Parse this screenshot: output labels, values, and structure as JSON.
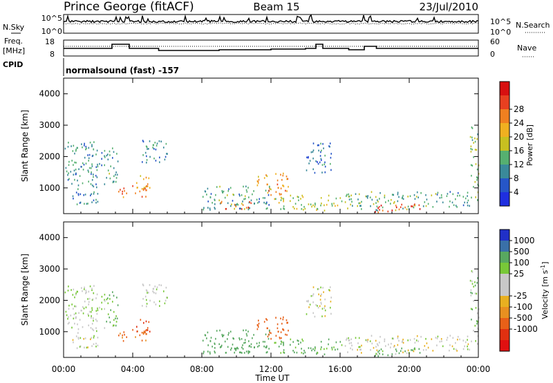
{
  "header": {
    "site": "Prince George (fitACF)",
    "beam": "Beam 15",
    "date": "23/Jul/2010"
  },
  "noise_panel": {
    "left_label": "N.Sky",
    "right_label": "N.Search",
    "tick_top": "10^5",
    "tick_bottom": "10^0"
  },
  "freq_panel": {
    "left_label_1": "Freq.",
    "left_label_2": "[MHz]",
    "right_label": "Nave",
    "left_ticks": [
      "18",
      "8"
    ],
    "right_ticks": [
      "60",
      "0"
    ]
  },
  "cpid": {
    "label": "CPID",
    "program": "normalsound (fast) -157"
  },
  "axes": {
    "ylabel": "Slant Range [km]",
    "xlabel": "Time UT",
    "yticks": [
      "1000",
      "2000",
      "3000",
      "4000"
    ],
    "xticks": [
      "00:00",
      "04:00",
      "08:00",
      "12:00",
      "16:00",
      "20:00",
      "00:00"
    ]
  },
  "power_scale": {
    "label": "Power [dB]",
    "ticks": [
      "4",
      "8",
      "12",
      "16",
      "20",
      "24",
      "28"
    ],
    "colors": [
      "#1f2fe0",
      "#2656c8",
      "#3a8a9a",
      "#56b070",
      "#c8c020",
      "#f0b020",
      "#f08020",
      "#e84020",
      "#d81010"
    ]
  },
  "velocity_scale": {
    "label": "Velocity [m s^-1]",
    "ticks": [
      "1000",
      "500",
      "100",
      "25",
      "-25",
      "-100",
      "-500",
      "-1000"
    ],
    "colors": [
      "#2030c8",
      "#3a70a8",
      "#58a860",
      "#78c838",
      "#c8c8c8",
      "#c8c8c8",
      "#e8b020",
      "#e89020",
      "#e86018",
      "#e03010",
      "#e01010"
    ]
  },
  "chart_data": {
    "type": "heatmap",
    "x_range_hours": [
      0,
      24
    ],
    "y_range_km": [
      180,
      4500
    ],
    "power_range_db": [
      0,
      30
    ],
    "velocity_range_ms": [
      -1000,
      1000
    ],
    "scatter_regions": [
      {
        "t0": 0.0,
        "t1": 2.4,
        "r0": 1100,
        "r1": 2500,
        "power": 9,
        "velocity": 20
      },
      {
        "t0": 0.5,
        "t1": 2.0,
        "r0": 500,
        "r1": 1200,
        "power": 8,
        "velocity": 0
      },
      {
        "t0": 2.4,
        "t1": 3.2,
        "r0": 1200,
        "r1": 2300,
        "power": 10,
        "velocity": 60
      },
      {
        "t0": 3.0,
        "t1": 4.8,
        "r0": 700,
        "r1": 1100,
        "power": 22,
        "velocity": -150
      },
      {
        "t0": 4.2,
        "t1": 5.0,
        "r0": 900,
        "r1": 1500,
        "power": 18,
        "velocity": -300
      },
      {
        "t0": 4.5,
        "t1": 6.0,
        "r0": 1800,
        "r1": 2600,
        "power": 9,
        "velocity": 15
      },
      {
        "t0": 8.0,
        "t1": 12.0,
        "r0": 300,
        "r1": 1100,
        "power": 10,
        "velocity": 120
      },
      {
        "t0": 9.0,
        "t1": 11.0,
        "r0": 350,
        "r1": 600,
        "power": 24,
        "velocity": 150
      },
      {
        "t0": 11.0,
        "t1": 13.0,
        "r0": 800,
        "r1": 1500,
        "power": 20,
        "velocity": -200
      },
      {
        "t0": 12.0,
        "t1": 16.0,
        "r0": 300,
        "r1": 800,
        "power": 14,
        "velocity": 80
      },
      {
        "t0": 14.0,
        "t1": 15.5,
        "r0": 1500,
        "r1": 2500,
        "power": 7,
        "velocity": 0
      },
      {
        "t0": 16.0,
        "t1": 20.0,
        "r0": 300,
        "r1": 900,
        "power": 12,
        "velocity": 0
      },
      {
        "t0": 18.0,
        "t1": 21.0,
        "r0": 250,
        "r1": 500,
        "power": 25,
        "velocity": 100
      },
      {
        "t0": 20.0,
        "t1": 23.5,
        "r0": 400,
        "r1": 900,
        "power": 10,
        "velocity": 0
      },
      {
        "t0": 23.5,
        "t1": 24.0,
        "r0": 500,
        "r1": 3000,
        "power": 12,
        "velocity": 40
      }
    ]
  }
}
